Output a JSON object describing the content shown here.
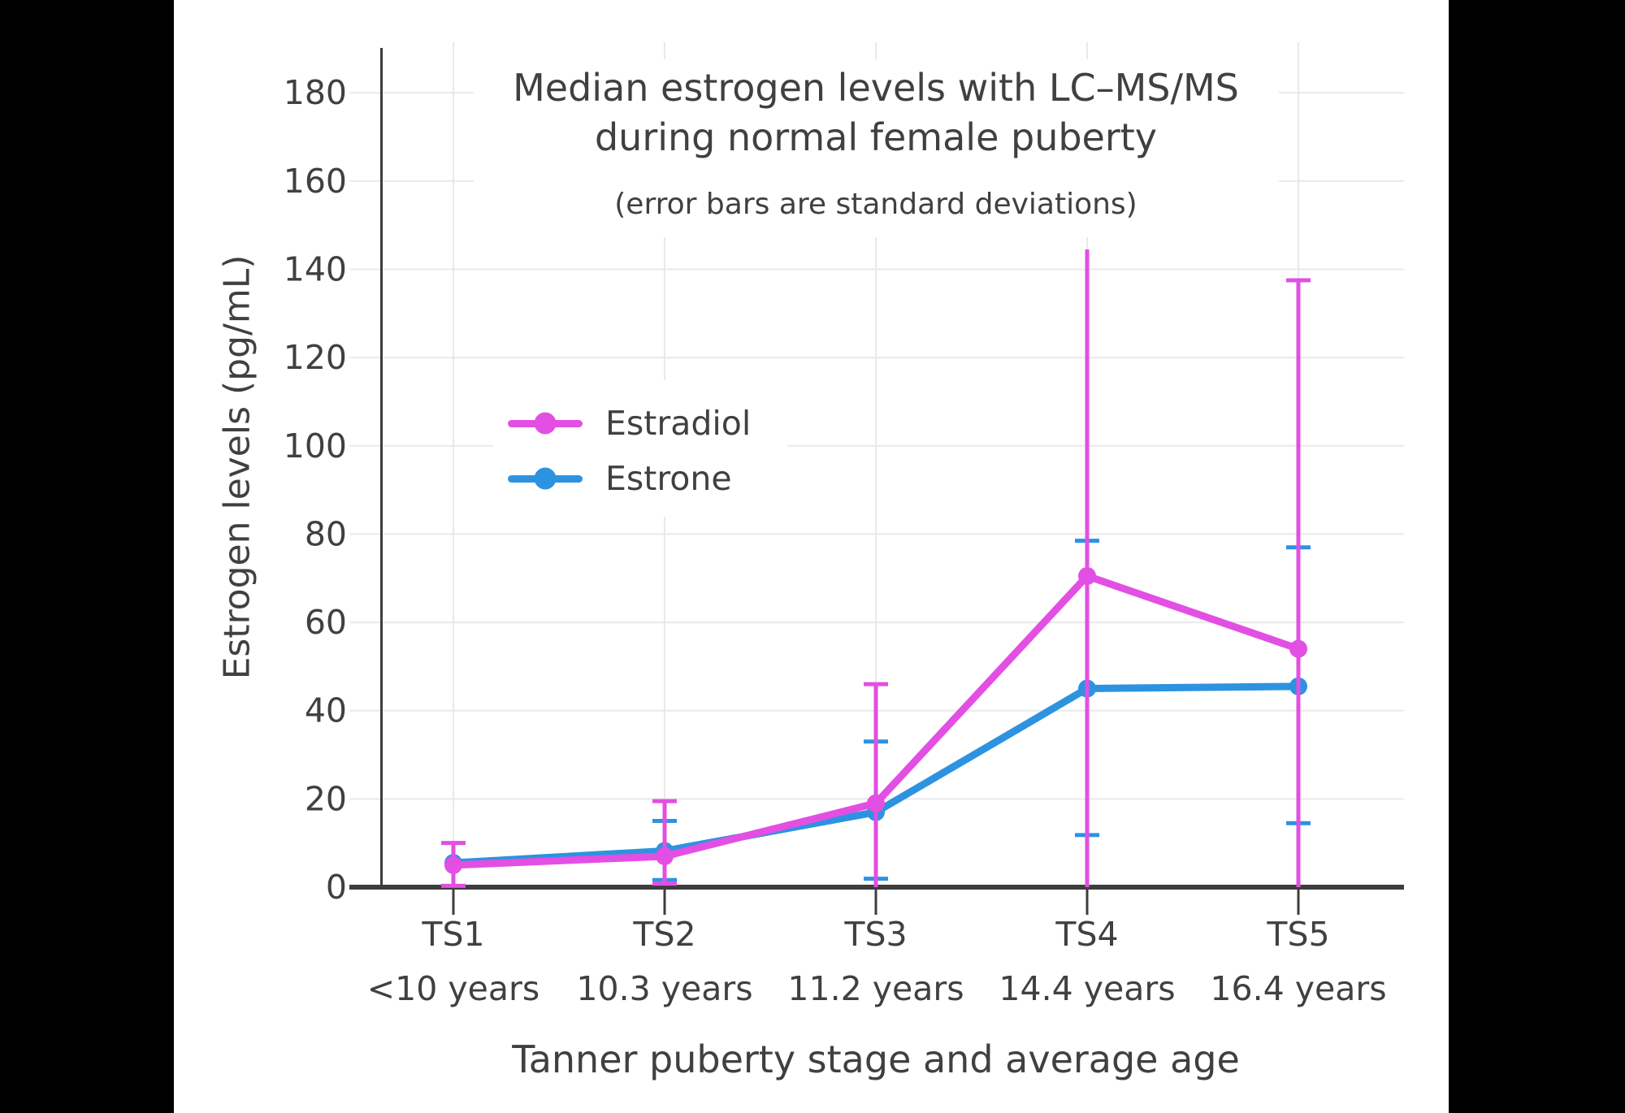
{
  "page": {
    "background": "#000000",
    "canvas_background": "#FFFFFF"
  },
  "colors": {
    "estradiol": "#E24FE2",
    "estrone": "#2D93E0",
    "text": "#404040",
    "axis": "#3D3D3D",
    "grid": "#E9E9E9"
  },
  "chart_data": {
    "type": "line",
    "title_line1": "Median estrogen levels with LC–MS/MS",
    "title_line2": "during normal female puberty",
    "subtitle": "(error bars are standard deviations)",
    "xlabel": "Tanner puberty stage and average age",
    "ylabel": "Estrogen levels (pg/mL)",
    "x_categories": [
      {
        "stage": "TS1",
        "age": "<10 years"
      },
      {
        "stage": "TS2",
        "age": "10.3 years"
      },
      {
        "stage": "TS3",
        "age": "11.2 years"
      },
      {
        "stage": "TS4",
        "age": "14.4 years"
      },
      {
        "stage": "TS5",
        "age": "16.4 years"
      }
    ],
    "y_ticks": [
      0,
      20,
      40,
      60,
      80,
      100,
      120,
      140,
      160,
      180
    ],
    "ylim": [
      0,
      192
    ],
    "grid": true,
    "legend": {
      "position": "inside-upper-left",
      "background": "#FFFFFF"
    },
    "series": [
      {
        "name": "Estrone",
        "color": "#2D93E0",
        "values": [
          5.5,
          8.2,
          17,
          45,
          45.5
        ],
        "error_bars": [
          null,
          {
            "hi": 15,
            "lo": 1.6,
            "cap_hi": true,
            "cap_lo": true
          },
          {
            "hi": 33,
            "lo": 1.9,
            "cap_hi": true,
            "cap_lo": true
          },
          {
            "hi": 78.5,
            "lo": 11.8,
            "cap_hi": true,
            "cap_lo": true
          },
          {
            "hi": 77,
            "lo": 14.5,
            "cap_hi": true,
            "cap_lo": true
          }
        ]
      },
      {
        "name": "Estradiol",
        "color": "#E24FE2",
        "values": [
          5,
          7,
          19,
          70.5,
          54
        ],
        "error_bars": [
          {
            "hi": 10,
            "lo": 0.3,
            "cap_hi": true,
            "cap_lo": true
          },
          {
            "hi": 19.5,
            "lo": 0.8,
            "cap_hi": true,
            "cap_lo": true
          },
          {
            "hi": 46,
            "lo": 0,
            "cap_hi": true,
            "cap_lo": false
          },
          {
            "hi": 144.5,
            "lo": 0,
            "cap_hi": false,
            "cap_lo": false
          },
          {
            "hi": 137.5,
            "lo": 0,
            "cap_hi": true,
            "cap_lo": false
          }
        ]
      }
    ]
  }
}
